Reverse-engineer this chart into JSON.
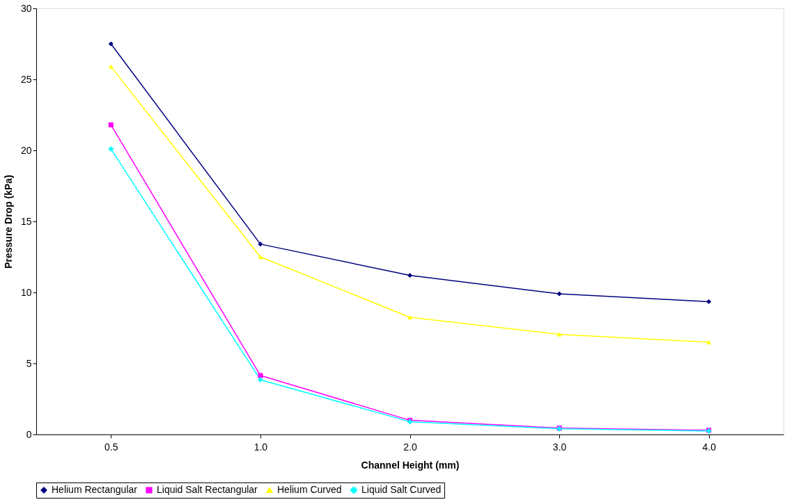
{
  "chart_data": {
    "type": "line",
    "xlabel": "Channel Height (mm)",
    "ylabel": "Pressure Drop (kPa)",
    "categories": [
      "0.5",
      "1.0",
      "2.0",
      "3.0",
      "4.0"
    ],
    "series": [
      {
        "name": "Helium Rectangular",
        "color": "#000080",
        "marker": "diamond",
        "values": [
          27.5,
          13.4,
          11.2,
          9.9,
          9.35
        ]
      },
      {
        "name": "Liquid Salt Rectangular",
        "color": "#ff00ff",
        "marker": "square",
        "values": [
          21.8,
          4.15,
          1.0,
          0.45,
          0.3
        ]
      },
      {
        "name": "Helium Curved",
        "color": "#ffff00",
        "marker": "triangle",
        "values": [
          25.9,
          12.5,
          8.25,
          7.05,
          6.5
        ]
      },
      {
        "name": "Liquid Salt Curved",
        "color": "#00ffff",
        "marker": "cross",
        "values": [
          20.1,
          3.85,
          0.9,
          0.4,
          0.25
        ]
      }
    ],
    "ylim": [
      0,
      30
    ],
    "yticks": [
      0,
      5,
      10,
      15,
      20,
      25,
      30
    ],
    "grid": false,
    "legend": "bottom",
    "line_style": "solid"
  }
}
